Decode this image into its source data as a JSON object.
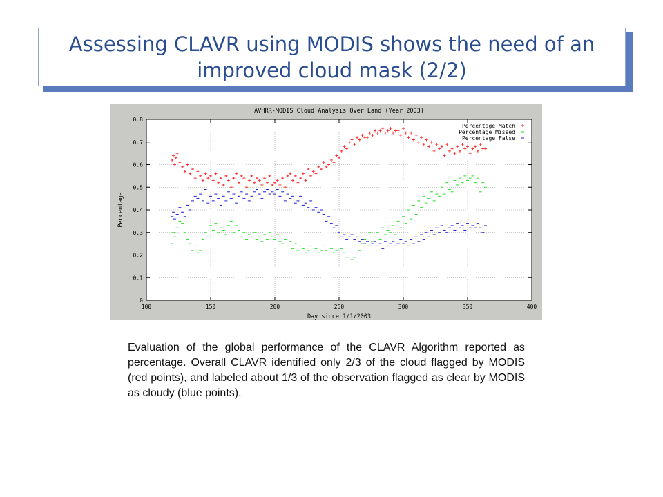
{
  "slide": {
    "title": "Assessing  CLAVR using MODIS shows the need of an improved cloud mask (2/2)",
    "caption": "Evaluation of the global performance of the CLAVR Algorithm reported as percentage.  Overall CLAVR identified only 2/3 of the cloud flagged by MODIS (red points), and labeled about 1/3 of the observation flagged as clear by MODIS as cloudy (blue points)."
  },
  "colors": {
    "title_text": "#2a4d8f",
    "title_shadow": "#5b7bbf",
    "panel_bg": "#c9c9c5",
    "plot_bg": "#ffffff"
  },
  "chart_data": {
    "type": "scatter",
    "title": "AVHRR-MODIS Cloud Analysis Over Land (Year 2003)",
    "xlabel": "Day since 1/1/2003",
    "ylabel": "Percentage",
    "xlim": [
      100,
      400
    ],
    "ylim": [
      0,
      0.8
    ],
    "xticks": [
      100,
      150,
      200,
      250,
      300,
      350,
      400
    ],
    "yticks": [
      0,
      0.1,
      0.2,
      0.3,
      0.4,
      0.5,
      0.6,
      0.7,
      0.8
    ],
    "grid": true,
    "legend_position": "top-right",
    "series": [
      {
        "name": "Percentage Match",
        "color": "#ff2a2a",
        "x": [
          120,
          121,
          122,
          123,
          124,
          126,
          128,
          130,
          132,
          134,
          136,
          138,
          140,
          142,
          144,
          146,
          148,
          150,
          152,
          154,
          156,
          158,
          160,
          162,
          164,
          166,
          168,
          170,
          172,
          174,
          176,
          178,
          180,
          182,
          184,
          186,
          188,
          190,
          192,
          194,
          196,
          198,
          200,
          202,
          204,
          206,
          208,
          210,
          212,
          214,
          216,
          218,
          220,
          222,
          224,
          226,
          228,
          230,
          232,
          234,
          236,
          238,
          240,
          242,
          244,
          246,
          248,
          250,
          252,
          254,
          256,
          258,
          260,
          262,
          264,
          266,
          268,
          270,
          272,
          274,
          276,
          278,
          280,
          282,
          284,
          286,
          288,
          290,
          292,
          294,
          296,
          298,
          300,
          302,
          304,
          306,
          308,
          310,
          312,
          314,
          316,
          318,
          320,
          322,
          324,
          326,
          328,
          330,
          332,
          334,
          336,
          338,
          340,
          342,
          344,
          346,
          348,
          350,
          352,
          354,
          356,
          358,
          360,
          362,
          364
        ],
        "y": [
          0.62,
          0.64,
          0.6,
          0.63,
          0.65,
          0.61,
          0.59,
          0.57,
          0.6,
          0.56,
          0.58,
          0.54,
          0.57,
          0.55,
          0.53,
          0.56,
          0.54,
          0.55,
          0.53,
          0.56,
          0.52,
          0.54,
          0.51,
          0.55,
          0.53,
          0.5,
          0.54,
          0.56,
          0.52,
          0.55,
          0.54,
          0.5,
          0.53,
          0.55,
          0.52,
          0.54,
          0.53,
          0.51,
          0.54,
          0.52,
          0.55,
          0.51,
          0.52,
          0.53,
          0.51,
          0.54,
          0.5,
          0.55,
          0.56,
          0.53,
          0.55,
          0.52,
          0.54,
          0.56,
          0.53,
          0.58,
          0.55,
          0.57,
          0.56,
          0.59,
          0.58,
          0.61,
          0.59,
          0.6,
          0.62,
          0.61,
          0.64,
          0.63,
          0.66,
          0.68,
          0.67,
          0.7,
          0.71,
          0.69,
          0.72,
          0.71,
          0.73,
          0.72,
          0.72,
          0.74,
          0.73,
          0.75,
          0.74,
          0.75,
          0.76,
          0.74,
          0.75,
          0.76,
          0.74,
          0.75,
          0.75,
          0.73,
          0.76,
          0.74,
          0.72,
          0.74,
          0.71,
          0.73,
          0.7,
          0.72,
          0.69,
          0.71,
          0.68,
          0.7,
          0.66,
          0.69,
          0.67,
          0.68,
          0.64,
          0.69,
          0.66,
          0.67,
          0.65,
          0.68,
          0.66,
          0.69,
          0.67,
          0.68,
          0.65,
          0.67,
          0.68,
          0.66,
          0.69,
          0.67,
          0.67
        ]
      },
      {
        "name": "Percentage Missed",
        "color": "#22dd22",
        "x": [
          120,
          121,
          122,
          124,
          126,
          128,
          130,
          132,
          134,
          136,
          138,
          140,
          142,
          144,
          146,
          148,
          150,
          152,
          154,
          156,
          158,
          160,
          162,
          164,
          166,
          168,
          170,
          172,
          174,
          176,
          178,
          180,
          182,
          184,
          186,
          188,
          190,
          192,
          194,
          196,
          198,
          200,
          202,
          204,
          206,
          208,
          210,
          212,
          214,
          216,
          218,
          220,
          222,
          224,
          226,
          228,
          230,
          232,
          234,
          236,
          238,
          240,
          242,
          244,
          246,
          248,
          250,
          252,
          254,
          256,
          258,
          260,
          262,
          264,
          266,
          268,
          270,
          272,
          274,
          276,
          278,
          280,
          282,
          284,
          286,
          288,
          290,
          292,
          294,
          296,
          298,
          300,
          302,
          304,
          306,
          308,
          310,
          312,
          314,
          316,
          318,
          320,
          322,
          324,
          326,
          328,
          330,
          332,
          334,
          336,
          338,
          340,
          342,
          344,
          346,
          348,
          350,
          352,
          354,
          356,
          358,
          360,
          362,
          364
        ],
        "y": [
          0.25,
          0.3,
          0.28,
          0.32,
          0.35,
          0.34,
          0.3,
          0.27,
          0.25,
          0.22,
          0.24,
          0.21,
          0.22,
          0.27,
          0.3,
          0.28,
          0.33,
          0.31,
          0.34,
          0.3,
          0.32,
          0.31,
          0.29,
          0.33,
          0.35,
          0.3,
          0.33,
          0.31,
          0.28,
          0.3,
          0.27,
          0.29,
          0.28,
          0.3,
          0.27,
          0.28,
          0.26,
          0.29,
          0.27,
          0.3,
          0.28,
          0.27,
          0.29,
          0.26,
          0.25,
          0.27,
          0.24,
          0.26,
          0.23,
          0.25,
          0.22,
          0.24,
          0.23,
          0.21,
          0.22,
          0.24,
          0.2,
          0.23,
          0.21,
          0.22,
          0.24,
          0.22,
          0.2,
          0.23,
          0.21,
          0.22,
          0.2,
          0.23,
          0.21,
          0.19,
          0.2,
          0.18,
          0.19,
          0.17,
          0.22,
          0.25,
          0.27,
          0.24,
          0.3,
          0.26,
          0.28,
          0.3,
          0.27,
          0.32,
          0.29,
          0.31,
          0.3,
          0.33,
          0.29,
          0.35,
          0.32,
          0.37,
          0.34,
          0.4,
          0.36,
          0.42,
          0.38,
          0.44,
          0.41,
          0.46,
          0.43,
          0.45,
          0.48,
          0.44,
          0.47,
          0.46,
          0.5,
          0.47,
          0.52,
          0.49,
          0.48,
          0.53,
          0.51,
          0.54,
          0.52,
          0.55,
          0.53,
          0.54,
          0.55,
          0.52,
          0.54,
          0.48,
          0.52,
          0.5
        ]
      },
      {
        "name": "Percentage False",
        "color": "#1a1add",
        "x": [
          120,
          121,
          122,
          124,
          126,
          128,
          130,
          132,
          134,
          136,
          138,
          140,
          142,
          144,
          146,
          148,
          150,
          152,
          154,
          156,
          158,
          160,
          162,
          164,
          166,
          168,
          170,
          172,
          174,
          176,
          178,
          180,
          182,
          184,
          186,
          188,
          190,
          192,
          194,
          196,
          198,
          200,
          202,
          204,
          206,
          208,
          210,
          212,
          214,
          216,
          218,
          220,
          222,
          224,
          226,
          228,
          230,
          232,
          234,
          236,
          238,
          240,
          242,
          244,
          246,
          248,
          250,
          252,
          254,
          256,
          258,
          260,
          262,
          264,
          266,
          268,
          270,
          272,
          274,
          276,
          278,
          280,
          282,
          284,
          286,
          288,
          290,
          292,
          294,
          296,
          298,
          300,
          302,
          304,
          306,
          308,
          310,
          312,
          314,
          316,
          318,
          320,
          322,
          324,
          326,
          328,
          330,
          332,
          334,
          336,
          338,
          340,
          342,
          344,
          346,
          348,
          350,
          352,
          354,
          356,
          358,
          360,
          362,
          364
        ],
        "y": [
          0.37,
          0.39,
          0.36,
          0.38,
          0.41,
          0.39,
          0.37,
          0.42,
          0.4,
          0.44,
          0.46,
          0.45,
          0.47,
          0.44,
          0.49,
          0.43,
          0.46,
          0.44,
          0.47,
          0.45,
          0.42,
          0.46,
          0.44,
          0.48,
          0.45,
          0.47,
          0.43,
          0.46,
          0.48,
          0.45,
          0.47,
          0.44,
          0.46,
          0.48,
          0.49,
          0.47,
          0.45,
          0.48,
          0.49,
          0.47,
          0.48,
          0.47,
          0.49,
          0.46,
          0.48,
          0.44,
          0.47,
          0.45,
          0.46,
          0.43,
          0.44,
          0.46,
          0.42,
          0.43,
          0.41,
          0.44,
          0.4,
          0.41,
          0.39,
          0.4,
          0.38,
          0.35,
          0.37,
          0.34,
          0.32,
          0.33,
          0.3,
          0.28,
          0.29,
          0.27,
          0.28,
          0.29,
          0.27,
          0.28,
          0.26,
          0.27,
          0.25,
          0.26,
          0.24,
          0.25,
          0.26,
          0.24,
          0.25,
          0.23,
          0.26,
          0.24,
          0.25,
          0.26,
          0.24,
          0.25,
          0.27,
          0.25,
          0.26,
          0.24,
          0.27,
          0.25,
          0.28,
          0.26,
          0.29,
          0.27,
          0.3,
          0.28,
          0.31,
          0.29,
          0.32,
          0.3,
          0.33,
          0.31,
          0.3,
          0.32,
          0.33,
          0.31,
          0.34,
          0.32,
          0.33,
          0.31,
          0.34,
          0.32,
          0.33,
          0.32,
          0.34,
          0.32,
          0.3,
          0.33
        ]
      }
    ]
  }
}
